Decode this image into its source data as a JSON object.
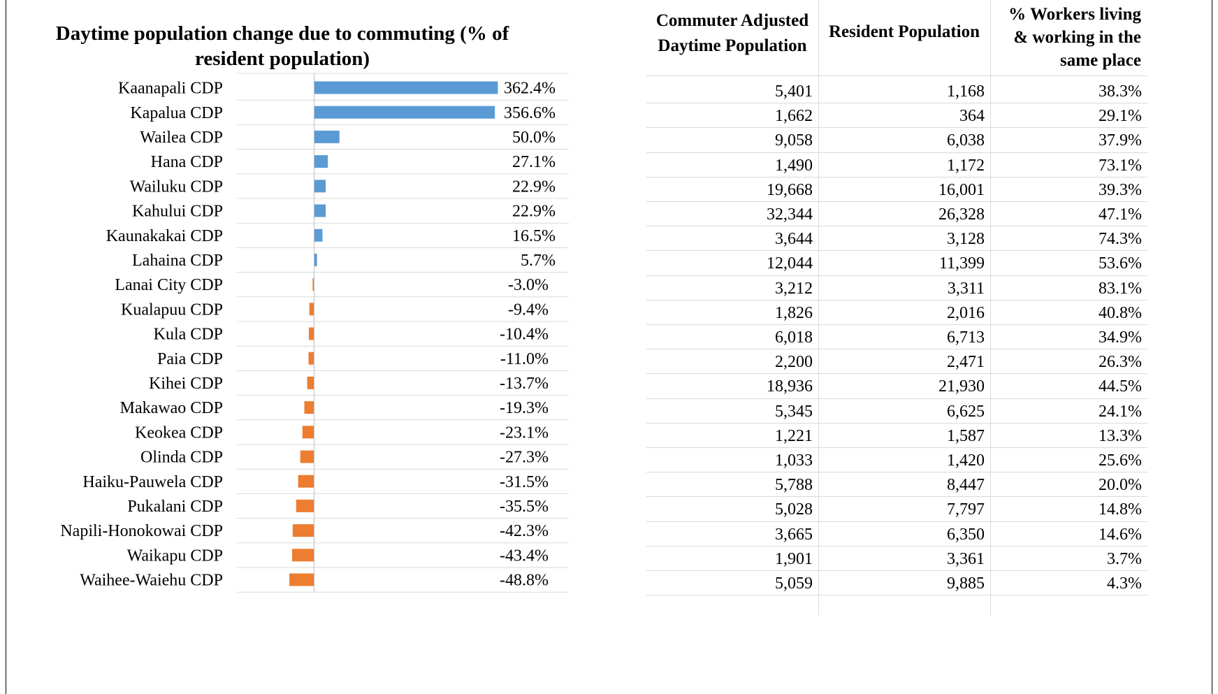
{
  "chart_data": {
    "type": "bar",
    "orientation": "horizontal",
    "title": "Daytime population change due to commuting (% of resident population)",
    "categories": [
      "Kaanapali CDP",
      "Kapalua CDP",
      "Wailea CDP",
      "Hana CDP",
      "Wailuku CDP",
      "Kahului CDP",
      "Kaunakakai CDP",
      "Lahaina CDP",
      "Lanai City CDP",
      "Kualapuu CDP",
      "Kula CDP",
      "Paia CDP",
      "Kihei CDP",
      "Makawao CDP",
      "Keokea CDP",
      "Olinda CDP",
      "Haiku-Pauwela CDP",
      "Pukalani CDP",
      "Napili-Honokowai CDP",
      "Waikapu CDP",
      "Waihee-Waiehu CDP"
    ],
    "values": [
      362.4,
      356.6,
      50.0,
      27.1,
      22.9,
      22.9,
      16.5,
      5.7,
      -3.0,
      -9.4,
      -10.4,
      -11.0,
      -13.7,
      -19.3,
      -23.1,
      -27.3,
      -31.5,
      -35.5,
      -42.3,
      -43.4,
      -48.8
    ],
    "value_labels": [
      "362.4%",
      "356.6%",
      "50.0%",
      "27.1%",
      "22.9%",
      "22.9%",
      "16.5%",
      "5.7%",
      "-3.0%",
      "-9.4%",
      "-10.4%",
      "-11.0%",
      "-13.7%",
      "-19.3%",
      "-23.1%",
      "-27.3%",
      "-31.5%",
      "-35.5%",
      "-42.3%",
      "-43.4%",
      "-48.8%"
    ],
    "colors": {
      "positive": "#5b9bd5",
      "negative": "#ed7d31"
    },
    "grid": false,
    "legend": "none"
  },
  "table": {
    "headers": {
      "daytime": [
        "Commuter Adjusted",
        "Daytime Population"
      ],
      "resident": [
        "Resident Population"
      ],
      "workers": [
        "% Workers living",
        "& working in the",
        "same place"
      ]
    },
    "rows": [
      [
        "5,401",
        "1,168",
        "38.3%"
      ],
      [
        "1,662",
        "364",
        "29.1%"
      ],
      [
        "9,058",
        "6,038",
        "37.9%"
      ],
      [
        "1,490",
        "1,172",
        "73.1%"
      ],
      [
        "19,668",
        "16,001",
        "39.3%"
      ],
      [
        "32,344",
        "26,328",
        "47.1%"
      ],
      [
        "3,644",
        "3,128",
        "74.3%"
      ],
      [
        "12,044",
        "11,399",
        "53.6%"
      ],
      [
        "3,212",
        "3,311",
        "83.1%"
      ],
      [
        "1,826",
        "2,016",
        "40.8%"
      ],
      [
        "6,018",
        "6,713",
        "34.9%"
      ],
      [
        "2,200",
        "2,471",
        "26.3%"
      ],
      [
        "18,936",
        "21,930",
        "44.5%"
      ],
      [
        "5,345",
        "6,625",
        "24.1%"
      ],
      [
        "1,221",
        "1,587",
        "13.3%"
      ],
      [
        "1,033",
        "1,420",
        "25.6%"
      ],
      [
        "5,788",
        "8,447",
        "20.0%"
      ],
      [
        "5,028",
        "7,797",
        "14.8%"
      ],
      [
        "3,665",
        "6,350",
        "14.6%"
      ],
      [
        "1,901",
        "3,361",
        "3.7%"
      ],
      [
        "5,059",
        "9,885",
        "4.3%"
      ]
    ]
  }
}
